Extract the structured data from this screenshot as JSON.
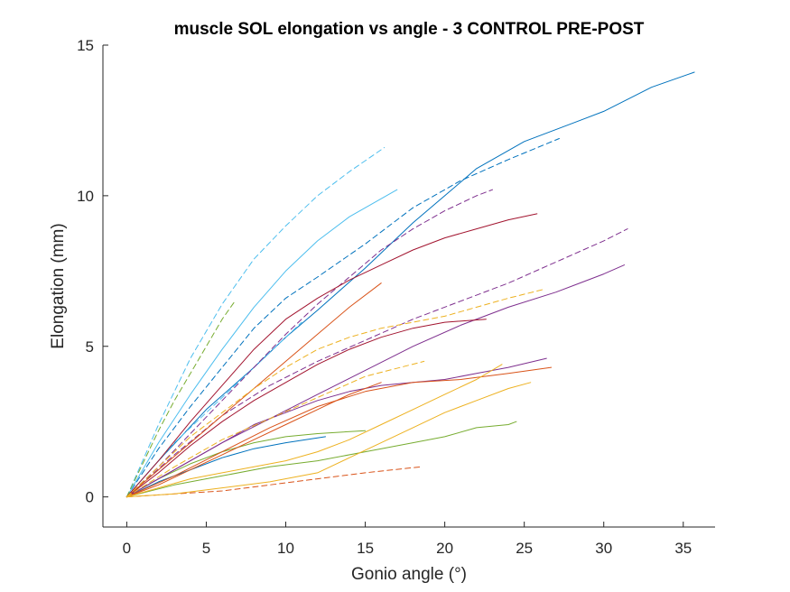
{
  "chart_data": {
    "type": "line",
    "title": "muscle SOL elongation vs angle - 3 CONTROL PRE-POST",
    "xlabel": "Gonio angle (°)",
    "ylabel": "Elongation (mm)",
    "xlim": [
      -1.5,
      37
    ],
    "ylim": [
      -1,
      15
    ],
    "xticks": [
      0,
      5,
      10,
      15,
      20,
      25,
      30,
      35
    ],
    "yticks": [
      0,
      5,
      10,
      15
    ],
    "grid": false,
    "box": false,
    "series": [
      {
        "color": "#0072BD",
        "style": "solid",
        "x": [
          0,
          2,
          5,
          8,
          10,
          12,
          15,
          18,
          20,
          22,
          25,
          28,
          30,
          33,
          35.7
        ],
        "y": [
          0,
          1.2,
          2.9,
          4.3,
          5.3,
          6.2,
          7.6,
          9.1,
          10.0,
          10.9,
          11.8,
          12.4,
          12.8,
          13.6,
          14.1
        ]
      },
      {
        "color": "#0072BD",
        "style": "dashed",
        "x": [
          0,
          2,
          4,
          6,
          8,
          10,
          12,
          15,
          18,
          21,
          24,
          27.2
        ],
        "y": [
          0,
          1.6,
          3.0,
          4.3,
          5.6,
          6.6,
          7.3,
          8.4,
          9.6,
          10.5,
          11.2,
          11.9
        ]
      },
      {
        "color": "#0072BD",
        "style": "solid",
        "x": [
          0,
          2,
          4,
          6,
          8,
          10,
          12.5
        ],
        "y": [
          0,
          0.5,
          0.9,
          1.3,
          1.6,
          1.8,
          2.0
        ]
      },
      {
        "color": "#4DBEEE",
        "style": "dashed",
        "x": [
          0,
          1,
          2,
          3,
          4,
          6,
          8,
          10,
          12,
          14,
          16.2
        ],
        "y": [
          0,
          1.2,
          2.4,
          3.5,
          4.6,
          6.4,
          7.9,
          9.0,
          10.0,
          10.8,
          11.6
        ]
      },
      {
        "color": "#4DBEEE",
        "style": "solid",
        "x": [
          0,
          1,
          2,
          4,
          6,
          8,
          10,
          12,
          14,
          16,
          17
        ],
        "y": [
          0,
          0.9,
          1.8,
          3.4,
          4.9,
          6.3,
          7.5,
          8.5,
          9.3,
          9.9,
          10.2
        ]
      },
      {
        "color": "#4DBEEE",
        "style": "dashed",
        "x": [
          0,
          1,
          2,
          3,
          4,
          5,
          6,
          7,
          8,
          9,
          10,
          11
        ],
        "y": [
          0,
          0.6,
          1.2,
          1.8,
          2.3,
          2.8,
          3.3,
          3.8,
          4.3,
          4.8,
          5.3,
          5.8
        ]
      },
      {
        "color": "#77AC30",
        "style": "dashed",
        "x": [
          0,
          1,
          2,
          3,
          4,
          5,
          6,
          6.8
        ],
        "y": [
          0,
          1.1,
          2.2,
          3.2,
          4.1,
          5.0,
          5.9,
          6.5
        ]
      },
      {
        "color": "#77AC30",
        "style": "solid",
        "x": [
          0,
          3,
          6,
          9,
          12,
          15,
          18,
          20,
          22,
          24,
          24.5
        ],
        "y": [
          0,
          0.4,
          0.7,
          1.0,
          1.2,
          1.5,
          1.8,
          2.0,
          2.3,
          2.4,
          2.5
        ]
      },
      {
        "color": "#77AC30",
        "style": "solid",
        "x": [
          0,
          2,
          4,
          6,
          8,
          10,
          12,
          15
        ],
        "y": [
          0,
          0.6,
          1.1,
          1.5,
          1.8,
          2.0,
          2.1,
          2.2
        ]
      },
      {
        "color": "#7E2F8E",
        "style": "dashed",
        "x": [
          0,
          2,
          4,
          6,
          8,
          10,
          12,
          14,
          16,
          18,
          20,
          22,
          23
        ],
        "y": [
          0,
          1.0,
          2.1,
          3.2,
          4.3,
          5.4,
          6.4,
          7.3,
          8.2,
          8.9,
          9.5,
          10.0,
          10.2
        ]
      },
      {
        "color": "#7E2F8E",
        "style": "dashed",
        "x": [
          0,
          3,
          6,
          9,
          12,
          15,
          18,
          21,
          24,
          27,
          30,
          31.5
        ],
        "y": [
          0,
          1.4,
          2.7,
          3.7,
          4.5,
          5.2,
          5.9,
          6.5,
          7.1,
          7.8,
          8.5,
          8.9
        ]
      },
      {
        "color": "#7E2F8E",
        "style": "solid",
        "x": [
          0,
          3,
          6,
          9,
          12,
          15,
          18,
          21,
          24,
          27,
          30,
          31.3
        ],
        "y": [
          0,
          0.9,
          1.8,
          2.6,
          3.4,
          4.2,
          5.0,
          5.7,
          6.3,
          6.8,
          7.4,
          7.7
        ]
      },
      {
        "color": "#7E2F8E",
        "style": "solid",
        "x": [
          0,
          2,
          4,
          6,
          8,
          10,
          12,
          14,
          16,
          18,
          20,
          22,
          24,
          26.4
        ],
        "y": [
          0,
          0.6,
          1.2,
          1.8,
          2.4,
          2.8,
          3.2,
          3.5,
          3.7,
          3.8,
          3.9,
          4.1,
          4.3,
          4.6
        ]
      },
      {
        "color": "#A2142F",
        "style": "solid",
        "x": [
          0,
          2,
          4,
          6,
          8,
          10,
          12,
          14,
          16,
          18,
          20,
          22,
          24,
          25.8
        ],
        "y": [
          0,
          1.2,
          2.5,
          3.7,
          4.9,
          5.9,
          6.6,
          7.2,
          7.7,
          8.2,
          8.6,
          8.9,
          9.2,
          9.4
        ]
      },
      {
        "color": "#A2142F",
        "style": "solid",
        "x": [
          0,
          2,
          4,
          6,
          8,
          10,
          12,
          14,
          16,
          18,
          20,
          22.6
        ],
        "y": [
          0,
          0.8,
          1.7,
          2.5,
          3.2,
          3.8,
          4.4,
          4.9,
          5.3,
          5.6,
          5.8,
          5.9
        ]
      },
      {
        "color": "#D95319",
        "style": "dashed",
        "x": [
          0,
          3,
          6,
          9,
          12,
          15,
          18.5
        ],
        "y": [
          0,
          0.1,
          0.2,
          0.4,
          0.6,
          0.8,
          1.0
        ]
      },
      {
        "color": "#D95319",
        "style": "solid",
        "x": [
          0,
          3,
          6,
          9,
          12,
          15,
          18,
          21,
          24,
          26.7
        ],
        "y": [
          0,
          0.7,
          1.5,
          2.3,
          3.0,
          3.5,
          3.8,
          3.9,
          4.1,
          4.3
        ]
      },
      {
        "color": "#D95319",
        "style": "solid",
        "x": [
          0,
          2,
          4,
          6,
          8,
          10,
          12,
          14,
          16
        ],
        "y": [
          0,
          0.4,
          0.9,
          1.4,
          1.9,
          2.4,
          2.9,
          3.4,
          3.8
        ]
      },
      {
        "color": "#D95319",
        "style": "solid",
        "x": [
          0,
          2,
          4,
          6,
          8,
          10,
          12,
          14,
          16
        ],
        "y": [
          0,
          0.9,
          1.8,
          2.7,
          3.6,
          4.5,
          5.4,
          6.3,
          7.1
        ]
      },
      {
        "color": "#EDB120",
        "style": "dashed",
        "x": [
          0,
          2,
          4,
          6,
          8,
          10,
          12,
          14,
          16,
          18,
          20,
          22,
          24,
          26.3
        ],
        "y": [
          0,
          1.0,
          2.0,
          2.8,
          3.6,
          4.3,
          4.9,
          5.3,
          5.6,
          5.8,
          6.0,
          6.3,
          6.6,
          6.9
        ]
      },
      {
        "color": "#EDB120",
        "style": "dashed",
        "x": [
          0,
          3,
          6,
          9,
          12,
          15,
          18.7
        ],
        "y": [
          0,
          1.0,
          1.9,
          2.6,
          3.3,
          4.0,
          4.5
        ]
      },
      {
        "color": "#EDB120",
        "style": "solid",
        "x": [
          0,
          3,
          6,
          9,
          12,
          14,
          16,
          18,
          20,
          22,
          24,
          25.4
        ],
        "y": [
          0,
          0.1,
          0.3,
          0.5,
          0.8,
          1.3,
          1.8,
          2.3,
          2.8,
          3.2,
          3.6,
          3.8
        ]
      },
      {
        "color": "#EDB120",
        "style": "solid",
        "x": [
          0,
          2,
          4,
          6,
          8,
          10,
          12,
          14,
          16,
          18,
          20,
          22,
          23.6
        ],
        "y": [
          0,
          0.3,
          0.6,
          0.8,
          1.0,
          1.2,
          1.5,
          1.9,
          2.4,
          2.9,
          3.4,
          3.9,
          4.4
        ]
      }
    ]
  }
}
